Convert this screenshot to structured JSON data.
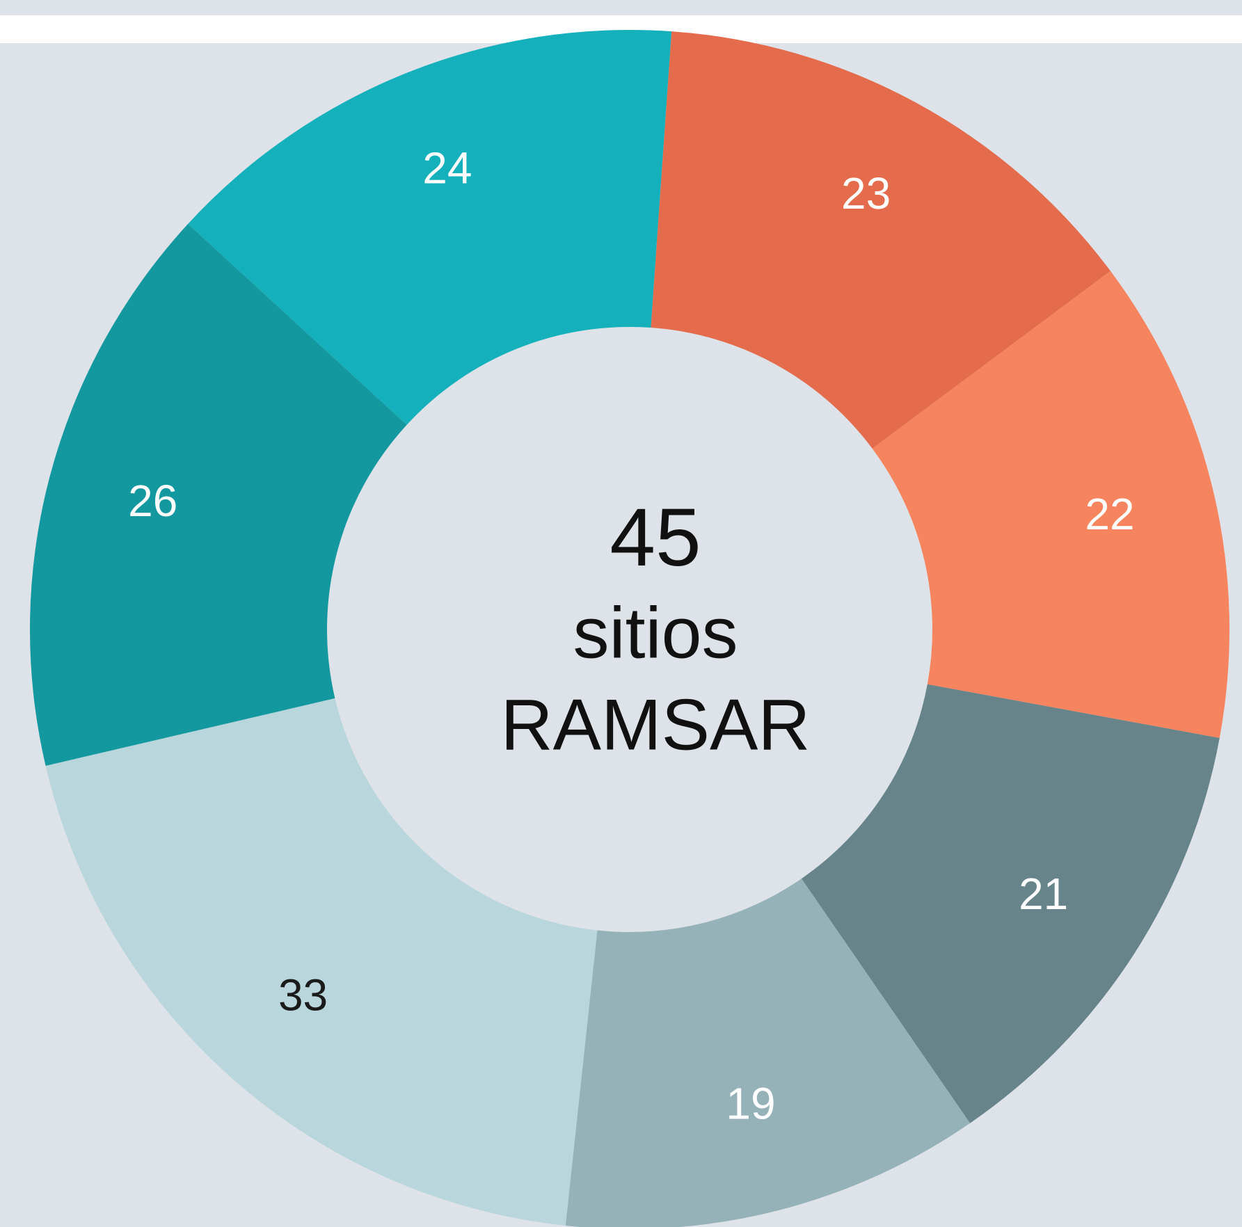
{
  "chart_data": {
    "type": "donut",
    "values": [
      23,
      22,
      21,
      19,
      33,
      26,
      24
    ],
    "colors": [
      "#e46c4c",
      "#f6845f",
      "#66848a",
      "#95b2b8",
      "#b8d6dc",
      "#14989f",
      "#14b0bc"
    ],
    "label_colors": [
      "#ffffff",
      "#ffffff",
      "#ffffff",
      "#ffffff",
      "#1a1a1a",
      "#ffffff",
      "#ffffff"
    ],
    "center_value": "45",
    "center_lines": [
      "sitios",
      "RAMSAR"
    ]
  }
}
